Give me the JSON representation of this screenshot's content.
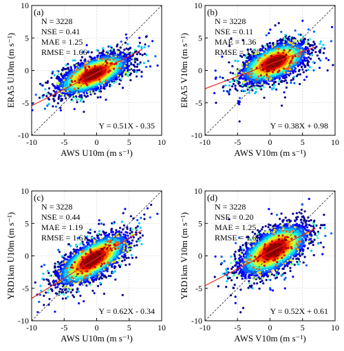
{
  "chart_data": [
    {
      "type": "scatter",
      "panel": "(a)",
      "xlabel": "AWS U10m (m s⁻¹)",
      "ylabel": "ERA5 U10m (m s⁻¹)",
      "xlim": [
        -10,
        10
      ],
      "ylim": [
        -10,
        10
      ],
      "xticks": [
        -10,
        -5,
        0,
        5,
        10
      ],
      "yticks": [
        -10,
        -5,
        0,
        5,
        10
      ],
      "grid": true,
      "stats": [
        "N = 3228",
        "NSE = 0.41",
        "MAE = 1.25",
        "RMSE = 1.66"
      ],
      "equation": "Y = 0.51X - 0.35",
      "fit": {
        "slope": 0.51,
        "intercept": -0.35
      },
      "cloud": {
        "center": [
          -0.5,
          -0.6
        ],
        "spread": [
          2.6,
          1.5
        ],
        "corr": 0.65,
        "n": 3228
      }
    },
    {
      "type": "scatter",
      "panel": "(b)",
      "xlabel": "AWS V10m (m s⁻¹)",
      "ylabel": "ERA5 V10m (m s⁻¹)",
      "xlim": [
        -10,
        10
      ],
      "ylim": [
        -10,
        10
      ],
      "xticks": [
        -10,
        -5,
        0,
        5,
        10
      ],
      "yticks": [
        -10,
        -5,
        0,
        5,
        10
      ],
      "grid": true,
      "stats": [
        "N = 3228",
        "NSE = 0.11",
        "MAE = 1.36",
        "RMSE = 1.75"
      ],
      "equation": "Y = 0.38X + 0.98",
      "fit": {
        "slope": 0.38,
        "intercept": 0.98
      },
      "cloud": {
        "center": [
          0.6,
          1.2
        ],
        "spread": [
          2.4,
          1.5
        ],
        "corr": 0.55,
        "n": 3228
      }
    },
    {
      "type": "scatter",
      "panel": "(c)",
      "xlabel": "AWS U10m (m s⁻¹)",
      "ylabel": "YRD1km U10m (m s⁻¹)",
      "xlim": [
        -10,
        10
      ],
      "ylim": [
        -10,
        10
      ],
      "xticks": [
        -10,
        -5,
        0,
        5,
        10
      ],
      "yticks": [
        -10,
        -5,
        0,
        5,
        10
      ],
      "grid": true,
      "stats": [
        "N = 3228",
        "NSE = 0.44",
        "MAE = 1.19",
        "RMSE = 1.61"
      ],
      "equation": "Y = 0.62X - 0.34",
      "fit": {
        "slope": 0.62,
        "intercept": -0.34
      },
      "cloud": {
        "center": [
          -0.6,
          -0.6
        ],
        "spread": [
          2.6,
          1.9
        ],
        "corr": 0.7,
        "n": 3228
      }
    },
    {
      "type": "scatter",
      "panel": "(d)",
      "xlabel": "AWS V10m (m s⁻¹)",
      "ylabel": "YRD1km V10m (m s⁻¹)",
      "xlim": [
        -10,
        10
      ],
      "ylim": [
        -10,
        10
      ],
      "xticks": [
        -10,
        -5,
        0,
        5,
        10
      ],
      "yticks": [
        -10,
        -5,
        0,
        5,
        10
      ],
      "grid": true,
      "stats": [
        "N = 3228",
        "NSE = 0.20",
        "MAE = 1.25",
        "RMSE = 1.66"
      ],
      "equation": "Y = 0.52X + 0.61",
      "fit": {
        "slope": 0.52,
        "intercept": 0.61
      },
      "cloud": {
        "center": [
          0.6,
          0.9
        ],
        "spread": [
          2.5,
          1.9
        ],
        "corr": 0.6,
        "n": 3228
      }
    }
  ],
  "colors": {
    "fit_line": "#e8231e",
    "one_to_one": "#222222",
    "density_scale": [
      "#00008f",
      "#0000ff",
      "#0060ff",
      "#00c8ff",
      "#40ffbf",
      "#bfff40",
      "#ffd000",
      "#ff6000",
      "#e00000",
      "#900000"
    ]
  }
}
